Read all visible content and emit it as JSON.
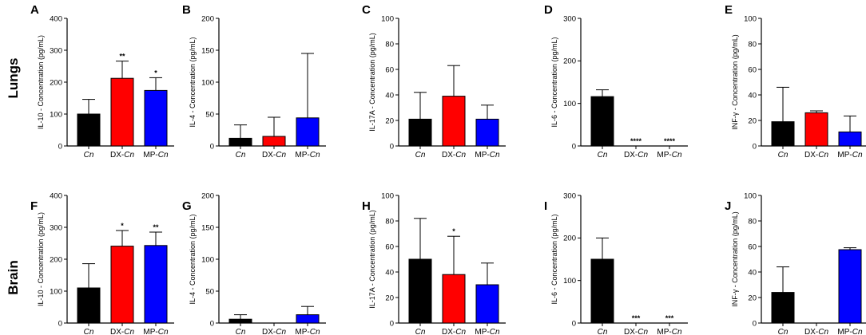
{
  "colors": {
    "Cn": "#000000",
    "DX-Cn": "#ff0000",
    "MP-Cn": "#0000ff"
  },
  "row_labels": {
    "top": "Lungs",
    "bottom": "Brain"
  },
  "categories": [
    {
      "prefix": "",
      "italic": "Cn"
    },
    {
      "prefix": "DX-",
      "italic": "Cn"
    },
    {
      "prefix": "MP-",
      "italic": "Cn"
    }
  ],
  "chart_data": [
    {
      "panel": "A",
      "row": "Lungs",
      "type": "bar",
      "ylabel": "IL-10 - Concentration (pg/mL)",
      "ylim": [
        0,
        400
      ],
      "yticks": [
        0,
        100,
        200,
        300,
        400
      ],
      "values": [
        100,
        212,
        174
      ],
      "errors": [
        46,
        54,
        40
      ],
      "significance": [
        "",
        "**",
        "*"
      ]
    },
    {
      "panel": "B",
      "row": "Lungs",
      "type": "bar",
      "ylabel": "IL-4 - Concentration (pg/mL)",
      "ylim": [
        0,
        200
      ],
      "yticks": [
        0,
        50,
        100,
        150,
        200
      ],
      "values": [
        12,
        15,
        44
      ],
      "errors": [
        21,
        30,
        101
      ],
      "significance": [
        "",
        "",
        ""
      ]
    },
    {
      "panel": "C",
      "row": "Lungs",
      "type": "bar",
      "ylabel": "IL-17A - Concentration (pg/mL)",
      "ylim": [
        0,
        100
      ],
      "yticks": [
        0,
        20,
        40,
        60,
        80,
        100
      ],
      "values": [
        21,
        39,
        21
      ],
      "errors": [
        21,
        24,
        11
      ],
      "significance": [
        "",
        "",
        ""
      ]
    },
    {
      "panel": "D",
      "row": "Lungs",
      "type": "bar",
      "ylabel": "IL-6 - Concentration (pg/mL)",
      "ylim": [
        0,
        300
      ],
      "yticks": [
        0,
        100,
        200,
        300
      ],
      "values": [
        116,
        0,
        0
      ],
      "errors": [
        16,
        0,
        0
      ],
      "significance": [
        "",
        "****",
        "****"
      ]
    },
    {
      "panel": "E",
      "row": "Lungs",
      "type": "bar",
      "ylabel": "INF-γ - Concentration (pg/mL)",
      "ylim": [
        0,
        100
      ],
      "yticks": [
        0,
        20,
        40,
        60,
        80,
        100
      ],
      "values": [
        19,
        26,
        11
      ],
      "errors": [
        27,
        1.5,
        12.5
      ],
      "significance": [
        "",
        "",
        ""
      ]
    },
    {
      "panel": "F",
      "row": "Brain",
      "type": "bar",
      "ylabel": "IL-10 - Concentration (pg/mL)",
      "ylim": [
        0,
        400
      ],
      "yticks": [
        0,
        100,
        200,
        300,
        400
      ],
      "values": [
        110,
        241,
        243
      ],
      "errors": [
        76,
        49,
        42
      ],
      "significance": [
        "",
        "*",
        "**"
      ]
    },
    {
      "panel": "G",
      "row": "Brain",
      "type": "bar",
      "ylabel": "IL-4 - Concentration (pg/mL)",
      "ylim": [
        0,
        200
      ],
      "yticks": [
        0,
        50,
        100,
        150,
        200
      ],
      "values": [
        6,
        0,
        13
      ],
      "errors": [
        7,
        0,
        13
      ],
      "significance": [
        "",
        "",
        ""
      ]
    },
    {
      "panel": "H",
      "row": "Brain",
      "type": "bar",
      "ylabel": "IL-17A - Concentration (pg/mL)",
      "ylim": [
        0,
        100
      ],
      "yticks": [
        0,
        20,
        40,
        60,
        80,
        100
      ],
      "values": [
        50,
        38,
        30
      ],
      "errors": [
        32,
        30,
        17
      ],
      "significance": [
        "",
        "*",
        ""
      ]
    },
    {
      "panel": "I",
      "row": "Brain",
      "type": "bar",
      "ylabel": "IL-6 - Concentration (pg/mL)",
      "ylim": [
        0,
        300
      ],
      "yticks": [
        0,
        100,
        200,
        300
      ],
      "values": [
        150,
        0,
        0
      ],
      "errors": [
        50,
        0,
        0
      ],
      "significance": [
        "",
        "***",
        "***"
      ]
    },
    {
      "panel": "J",
      "row": "Brain",
      "type": "bar",
      "ylabel": "INF-γ - Concentration (pg/mL)",
      "ylim": [
        0,
        100
      ],
      "yticks": [
        0,
        20,
        40,
        60,
        80,
        100
      ],
      "values": [
        24,
        0,
        57.5
      ],
      "errors": [
        20,
        0,
        1.5
      ],
      "significance": [
        "",
        "",
        ""
      ]
    }
  ]
}
